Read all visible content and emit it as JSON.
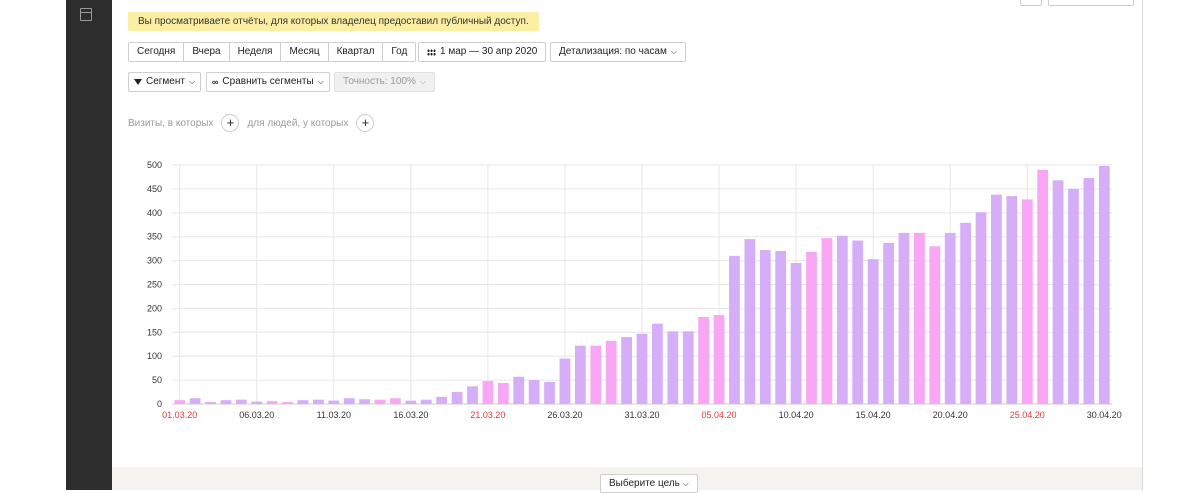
{
  "notice": {
    "text": "Вы просматриваете отчёты, для которых владелец предоставил публичный доступ."
  },
  "period": {
    "buttons": [
      "Сегодня",
      "Вчера",
      "Неделя",
      "Месяц",
      "Квартал",
      "Год"
    ]
  },
  "date_range": {
    "label": "1 мар — 30 апр 2020",
    "icon": "calendar-icon"
  },
  "detail": {
    "label": "Детализация: по часам"
  },
  "segment": {
    "label": "Сегмент",
    "icon": "filter-icon"
  },
  "compare": {
    "label": "Сравнить сегменты",
    "icon": "compare-icon"
  },
  "accuracy": {
    "label": "Точность: 100%"
  },
  "conditions": {
    "visits_label": "Визиты, в которых",
    "people_label": "для людей, у которых",
    "plus": "+"
  },
  "goal": {
    "label": "Выберите цель"
  },
  "colors": {
    "weekday": "#d6aef8",
    "weekend": "#f9a6f5",
    "weekend_label": "#e53935",
    "grid": "#e6e6e6"
  },
  "chart_data": {
    "type": "bar",
    "ylim": [
      0,
      500
    ],
    "yticks": [
      0,
      50,
      100,
      150,
      200,
      250,
      300,
      350,
      400,
      450,
      500
    ],
    "xtick_labels": [
      {
        "index": 0,
        "label": "01.03.20",
        "weekend": true
      },
      {
        "index": 5,
        "label": "06.03.20",
        "weekend": false
      },
      {
        "index": 10,
        "label": "11.03.20",
        "weekend": false
      },
      {
        "index": 15,
        "label": "16.03.20",
        "weekend": false
      },
      {
        "index": 20,
        "label": "21.03.20",
        "weekend": true
      },
      {
        "index": 25,
        "label": "26.03.20",
        "weekend": false
      },
      {
        "index": 30,
        "label": "31.03.20",
        "weekend": false
      },
      {
        "index": 35,
        "label": "05.04.20",
        "weekend": true
      },
      {
        "index": 40,
        "label": "10.04.20",
        "weekend": false
      },
      {
        "index": 45,
        "label": "15.04.20",
        "weekend": false
      },
      {
        "index": 50,
        "label": "20.04.20",
        "weekend": false
      },
      {
        "index": 55,
        "label": "25.04.20",
        "weekend": true
      },
      {
        "index": 60,
        "label": "30.04.20",
        "weekend": false
      }
    ],
    "values": [
      8,
      12,
      4,
      8,
      9,
      5,
      6,
      4,
      8,
      9,
      7,
      12,
      10,
      9,
      12,
      7,
      9,
      15,
      25,
      37,
      48,
      44,
      57,
      50,
      46,
      95,
      122,
      122,
      132,
      140,
      147,
      168,
      152,
      152,
      182,
      186,
      310,
      345,
      322,
      320,
      295,
      318,
      347,
      352,
      342,
      303,
      337,
      358,
      358,
      330,
      358,
      379,
      401,
      438,
      435,
      428,
      490,
      468,
      450,
      473,
      498
    ],
    "weekend": [
      true,
      false,
      false,
      false,
      false,
      false,
      true,
      true,
      false,
      false,
      false,
      false,
      false,
      true,
      true,
      false,
      false,
      false,
      false,
      false,
      true,
      true,
      false,
      false,
      false,
      false,
      false,
      true,
      true,
      false,
      false,
      false,
      false,
      false,
      true,
      true,
      false,
      false,
      false,
      false,
      false,
      true,
      true,
      false,
      false,
      false,
      false,
      false,
      true,
      true,
      false,
      false,
      false,
      false,
      false,
      true,
      true,
      false,
      false,
      false,
      false
    ]
  }
}
